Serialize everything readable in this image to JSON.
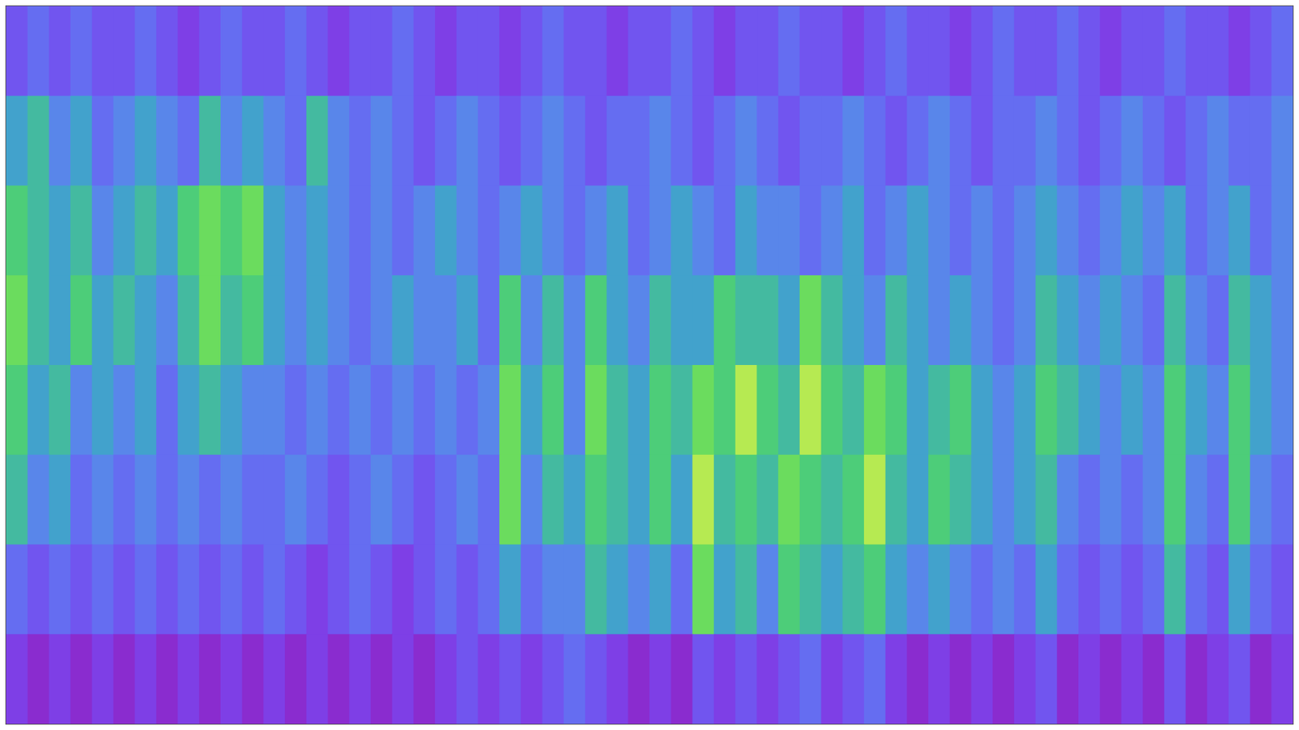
{
  "chart_data": {
    "type": "heatmap",
    "zlim": [
      0,
      9
    ],
    "tick_labels": false,
    "cells": [
      [
        2,
        3,
        2,
        3,
        2,
        2,
        3,
        2,
        1,
        2,
        3,
        2,
        2,
        3,
        2,
        1,
        2,
        2,
        3,
        2,
        1,
        2,
        2,
        1,
        2,
        3,
        2,
        2,
        1,
        2,
        2,
        3,
        2,
        1,
        2,
        2,
        3,
        2,
        2,
        1,
        2,
        3,
        2,
        2,
        1,
        2,
        3,
        2,
        2,
        3,
        2,
        1,
        2,
        2,
        3,
        2,
        2,
        1,
        2,
        3
      ],
      [
        5,
        6,
        4,
        5,
        3,
        4,
        5,
        4,
        3,
        6,
        4,
        5,
        4,
        3,
        6,
        4,
        3,
        4,
        3,
        2,
        3,
        4,
        3,
        2,
        3,
        4,
        3,
        2,
        3,
        3,
        4,
        3,
        2,
        3,
        4,
        3,
        2,
        3,
        3,
        4,
        3,
        2,
        3,
        4,
        3,
        2,
        3,
        3,
        4,
        3,
        2,
        3,
        4,
        3,
        2,
        3,
        4,
        3,
        3,
        4
      ],
      [
        7,
        6,
        5,
        6,
        4,
        5,
        6,
        5,
        7,
        8,
        7,
        8,
        5,
        4,
        5,
        4,
        3,
        4,
        3,
        4,
        5,
        4,
        3,
        4,
        5,
        4,
        3,
        4,
        5,
        3,
        4,
        5,
        4,
        3,
        5,
        4,
        4,
        3,
        4,
        5,
        3,
        4,
        5,
        4,
        3,
        4,
        3,
        4,
        5,
        4,
        3,
        4,
        5,
        4,
        5,
        3,
        4,
        5,
        3,
        4
      ],
      [
        8,
        6,
        5,
        7,
        5,
        6,
        5,
        4,
        6,
        8,
        6,
        7,
        5,
        4,
        5,
        4,
        3,
        4,
        5,
        4,
        4,
        5,
        3,
        7,
        4,
        6,
        4,
        7,
        5,
        4,
        6,
        5,
        5,
        7,
        6,
        6,
        5,
        8,
        6,
        5,
        4,
        6,
        5,
        4,
        5,
        4,
        3,
        4,
        6,
        5,
        4,
        5,
        4,
        3,
        6,
        4,
        3,
        6,
        5,
        4
      ],
      [
        7,
        5,
        6,
        4,
        5,
        4,
        5,
        3,
        5,
        6,
        5,
        4,
        4,
        3,
        4,
        3,
        4,
        3,
        4,
        3,
        4,
        3,
        4,
        8,
        5,
        7,
        4,
        8,
        6,
        5,
        7,
        6,
        8,
        7,
        9,
        7,
        6,
        9,
        7,
        6,
        8,
        7,
        5,
        6,
        7,
        5,
        4,
        5,
        7,
        6,
        5,
        4,
        5,
        4,
        7,
        5,
        4,
        7,
        5,
        4
      ],
      [
        6,
        4,
        5,
        3,
        4,
        3,
        4,
        3,
        4,
        3,
        4,
        3,
        3,
        4,
        3,
        2,
        3,
        4,
        3,
        2,
        3,
        4,
        3,
        8,
        4,
        6,
        5,
        7,
        6,
        5,
        7,
        5,
        9,
        6,
        7,
        6,
        8,
        7,
        6,
        7,
        9,
        6,
        5,
        7,
        6,
        5,
        4,
        5,
        6,
        4,
        3,
        4,
        3,
        4,
        7,
        4,
        3,
        7,
        4,
        3
      ],
      [
        3,
        2,
        3,
        2,
        3,
        2,
        3,
        2,
        3,
        2,
        3,
        2,
        3,
        2,
        1,
        2,
        3,
        2,
        1,
        2,
        3,
        2,
        3,
        5,
        3,
        4,
        4,
        6,
        5,
        4,
        5,
        3,
        8,
        5,
        6,
        4,
        7,
        6,
        5,
        6,
        7,
        5,
        4,
        5,
        4,
        3,
        4,
        3,
        5,
        3,
        2,
        3,
        2,
        3,
        6,
        3,
        2,
        5,
        3,
        2
      ],
      [
        1,
        0,
        1,
        0,
        1,
        0,
        1,
        0,
        1,
        0,
        1,
        0,
        1,
        0,
        1,
        0,
        1,
        0,
        1,
        0,
        1,
        2,
        1,
        2,
        1,
        2,
        3,
        2,
        1,
        0,
        1,
        0,
        2,
        1,
        2,
        1,
        2,
        3,
        1,
        2,
        3,
        1,
        0,
        1,
        0,
        1,
        0,
        1,
        2,
        0,
        1,
        0,
        1,
        0,
        2,
        0,
        1,
        2,
        0,
        1
      ]
    ]
  }
}
